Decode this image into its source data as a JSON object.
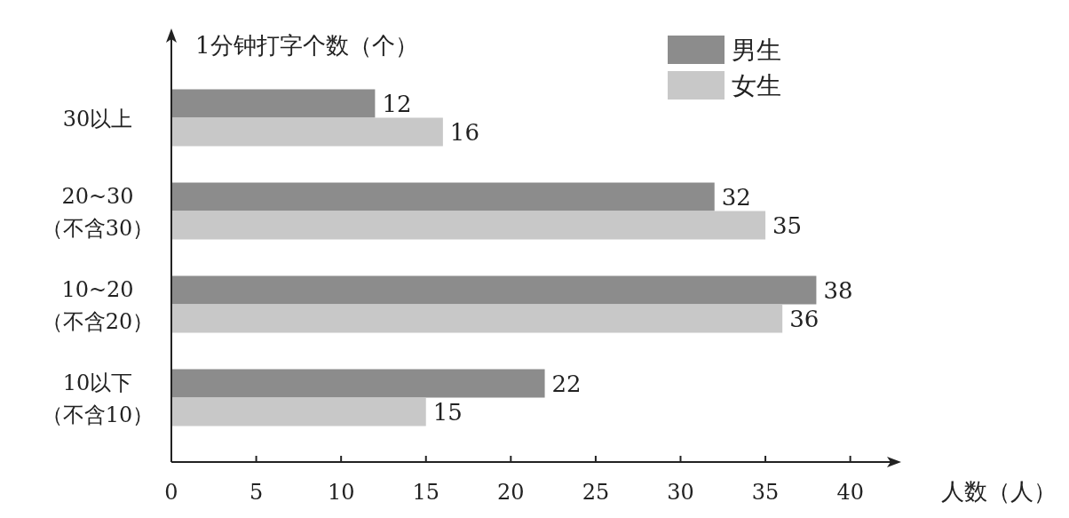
{
  "chart_data": {
    "type": "bar",
    "orientation": "horizontal",
    "ylabel": "1分钟打字个数（个）",
    "xlabel": "人数（人）",
    "categories": [
      "30以上",
      "20~30（不含30）",
      "10~20（不含20）",
      "10以下（不含10）"
    ],
    "series": [
      {
        "name": "男生",
        "color": "#8c8c8c",
        "values": [
          12,
          32,
          38,
          22
        ]
      },
      {
        "name": "女生",
        "color": "#c8c8c8",
        "values": [
          16,
          35,
          36,
          15
        ]
      }
    ],
    "xlim": [
      0,
      43
    ],
    "xticks": [
      0,
      5,
      10,
      15,
      20,
      25,
      30,
      35,
      40
    ],
    "data_labels": true,
    "legend": "top right",
    "grid": false
  }
}
